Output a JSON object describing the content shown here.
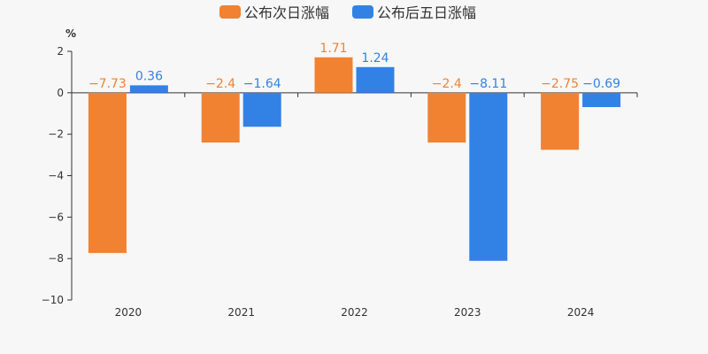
{
  "chart_data": {
    "type": "bar",
    "unit": "%",
    "categories": [
      "2020",
      "2021",
      "2022",
      "2023",
      "2024"
    ],
    "series": [
      {
        "name": "公布次日涨幅",
        "values": [
          -7.73,
          -2.4,
          1.71,
          -2.4,
          -2.75
        ],
        "labels": [
          "−7.73",
          "−2.4",
          "1.71",
          "−2.4",
          "−2.75"
        ],
        "color": "#f08232"
      },
      {
        "name": "公布后五日涨幅",
        "values": [
          0.36,
          -1.64,
          1.24,
          -8.11,
          -0.69
        ],
        "labels": [
          "0.36",
          "−1.64",
          "1.24",
          "−8.11",
          "−0.69"
        ],
        "color": "#3282e6"
      }
    ],
    "ylim": [
      -10,
      2
    ],
    "yticks": [
      2,
      0,
      -2,
      -4,
      -6,
      -8,
      -10
    ],
    "ytick_labels": [
      "2",
      "0",
      "−2",
      "−4",
      "−6",
      "−8",
      "−10"
    ],
    "grid": false,
    "legend_position": "top-center"
  }
}
